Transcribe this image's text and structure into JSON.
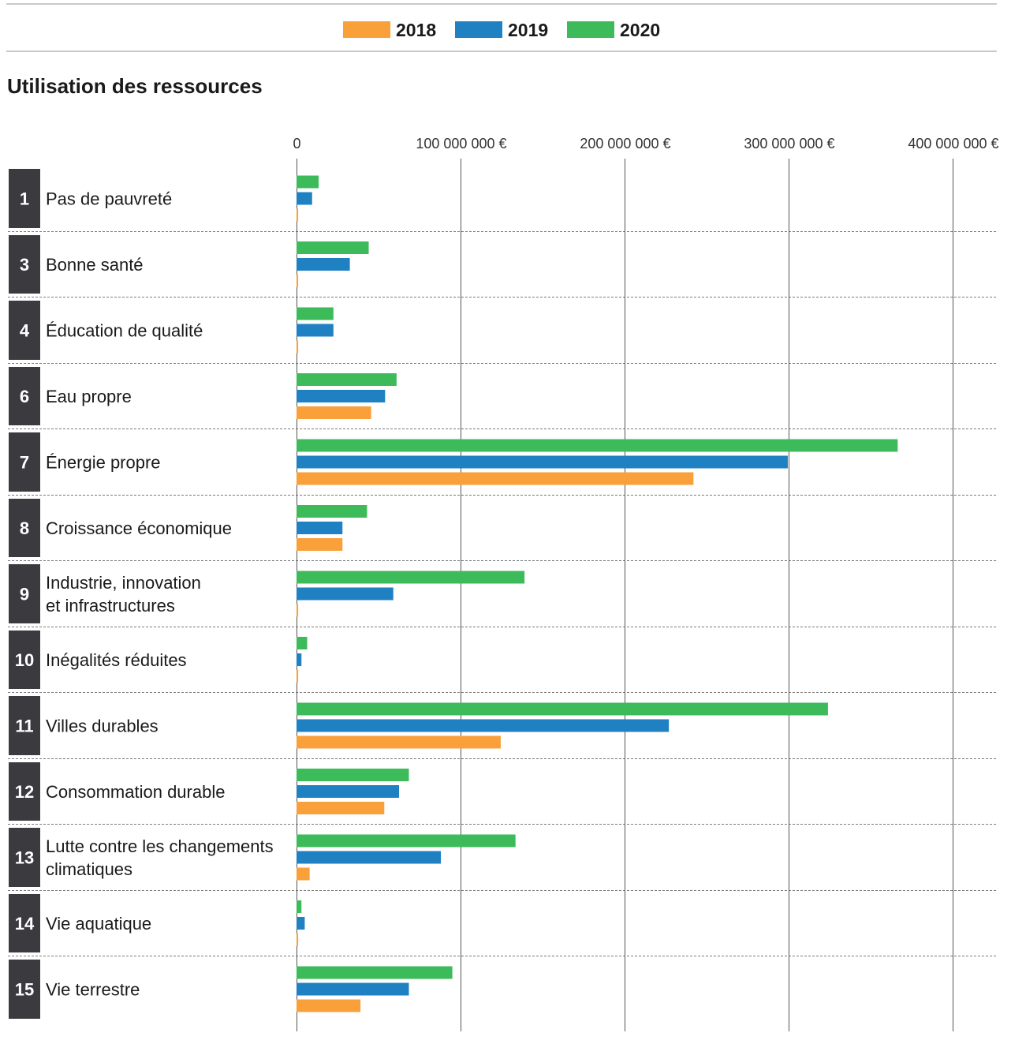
{
  "legend": [
    {
      "label": "2018",
      "color": "#f9a03b"
    },
    {
      "label": "2019",
      "color": "#1f80c2"
    },
    {
      "label": "2020",
      "color": "#3dbb5b"
    }
  ],
  "chart_data": {
    "type": "bar",
    "orientation": "horizontal",
    "title": "Utilisation des ressources",
    "xlim": [
      0,
      400000000
    ],
    "x_ticks": [
      {
        "value": 0,
        "label": "0"
      },
      {
        "value": 100000000,
        "label": "100 000 000 €"
      },
      {
        "value": 200000000,
        "label": "200 000 000 €"
      },
      {
        "value": 300000000,
        "label": "300 000 000 €"
      },
      {
        "value": 400000000,
        "label": "400 000 000 €"
      }
    ],
    "grid": "vertical",
    "legend_position": "top-center",
    "categories": [
      {
        "num": "1",
        "label": "Pas de pauvreté",
        "lines": [
          "Pas de pauvreté"
        ]
      },
      {
        "num": "3",
        "label": "Bonne santé",
        "lines": [
          "Bonne santé"
        ]
      },
      {
        "num": "4",
        "label": "Éducation de qualité",
        "lines": [
          "Éducation de qualité"
        ]
      },
      {
        "num": "6",
        "label": "Eau propre",
        "lines": [
          "Eau propre"
        ]
      },
      {
        "num": "7",
        "label": "Énergie propre",
        "lines": [
          "Énergie propre"
        ]
      },
      {
        "num": "8",
        "label": "Croissance économique",
        "lines": [
          "Croissance économique"
        ]
      },
      {
        "num": "9",
        "label": "Industrie, innovation et infrastructures",
        "lines": [
          "Industrie, innovation",
          "et infrastructures"
        ]
      },
      {
        "num": "10",
        "label": "Inégalités réduites",
        "lines": [
          "Inégalités réduites"
        ]
      },
      {
        "num": "11",
        "label": "Villes durables",
        "lines": [
          "Villes durables"
        ]
      },
      {
        "num": "12",
        "label": "Consommation durable",
        "lines": [
          "Consommation durable"
        ]
      },
      {
        "num": "13",
        "label": "Lutte contre les changements climatiques",
        "lines": [
          "Lutte contre les changements",
          "climatiques"
        ]
      },
      {
        "num": "14",
        "label": "Vie aquatique",
        "lines": [
          "Vie aquatique"
        ]
      },
      {
        "num": "15",
        "label": "Vie terrestre",
        "lines": [
          "Vie terrestre"
        ]
      }
    ],
    "series": [
      {
        "name": "2018",
        "color": "#f9a03b",
        "values": [
          1000000,
          1000000,
          1000000,
          45500000,
          242000000,
          28000000,
          1000000,
          1000000,
          124500000,
          53500000,
          8000000,
          1000000,
          39000000
        ]
      },
      {
        "name": "2019",
        "color": "#1f80c2",
        "values": [
          9500000,
          32500000,
          22500000,
          54000000,
          299500000,
          28000000,
          59000000,
          3000000,
          227000000,
          62500000,
          88000000,
          5000000,
          68500000
        ]
      },
      {
        "name": "2020",
        "color": "#3dbb5b",
        "values": [
          13500000,
          44000000,
          22500000,
          61000000,
          366500000,
          43000000,
          139000000,
          6500000,
          324000000,
          68500000,
          133500000,
          3000000,
          95000000
        ]
      }
    ]
  }
}
